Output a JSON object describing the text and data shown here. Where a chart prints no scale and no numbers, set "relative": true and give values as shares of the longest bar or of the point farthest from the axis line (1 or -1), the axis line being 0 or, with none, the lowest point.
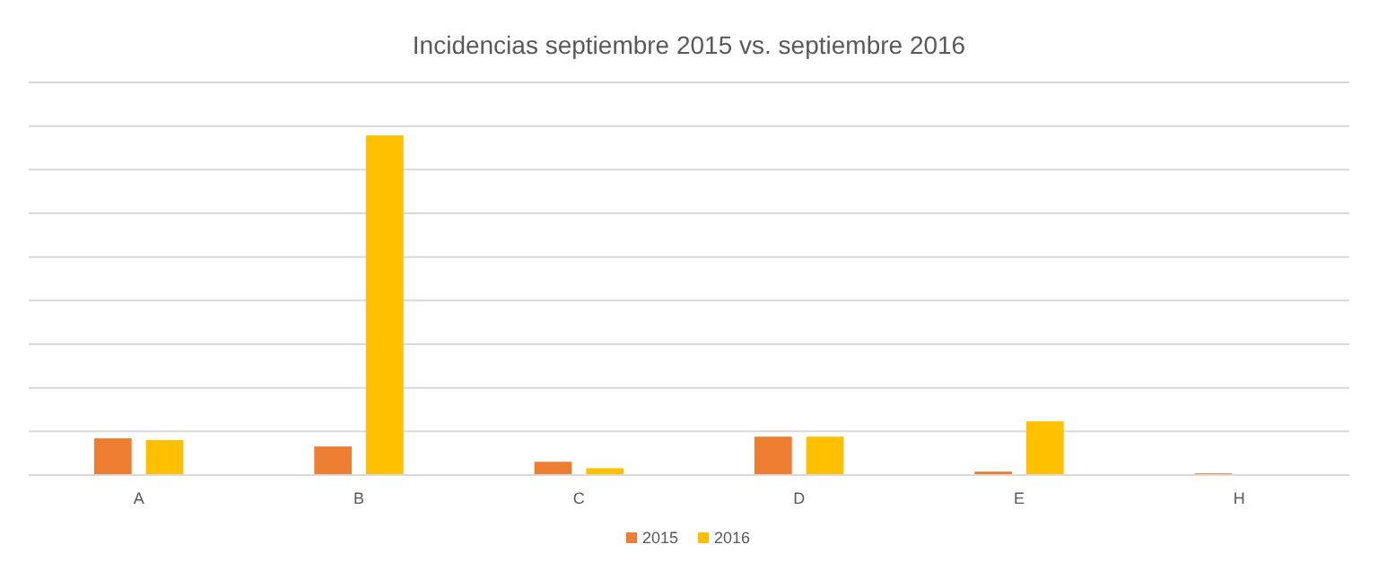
{
  "chart_data": {
    "type": "bar",
    "title": "Incidencias septiembre 2015 vs. septiembre 2016",
    "categories": [
      "A",
      "B",
      "C",
      "D",
      "E",
      "H"
    ],
    "relative": true,
    "grid": "y",
    "legend": "bottom",
    "series": [
      {
        "name": "2015",
        "color": "#ed7d31",
        "values": [
          0.108,
          0.084,
          0.039,
          0.113,
          0.01,
          0.005
        ]
      },
      {
        "name": "2016",
        "color": "#ffc000",
        "values": [
          0.103,
          1,
          0.02,
          0.113,
          0.158,
          0
        ]
      }
    ]
  }
}
